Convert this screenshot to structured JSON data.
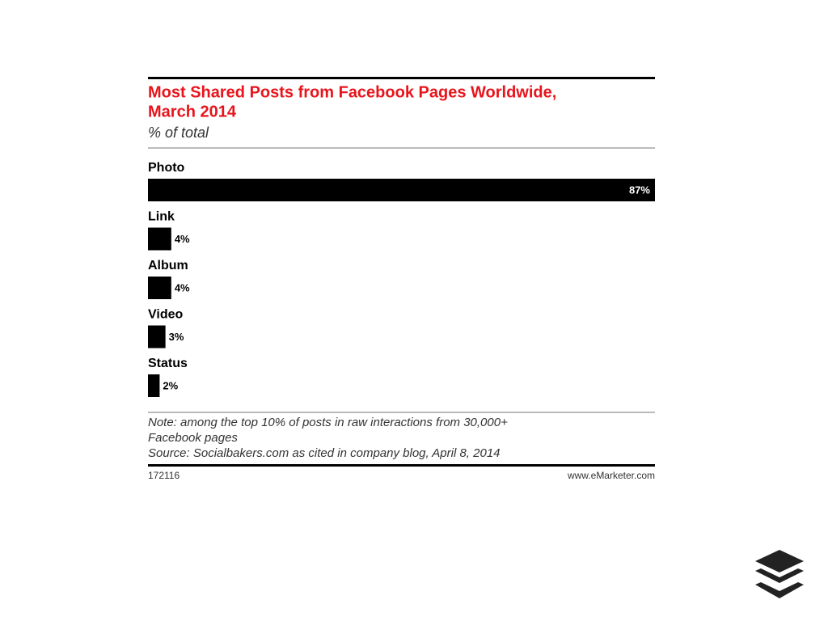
{
  "chart_data": {
    "type": "bar",
    "title": [
      "Most Shared Posts from Facebook Pages Worldwide,",
      "March 2014"
    ],
    "subtitle": "% of total",
    "categories": [
      "Photo",
      "Link",
      "Album",
      "Video",
      "Status"
    ],
    "values": [
      87,
      4,
      4,
      3,
      2
    ],
    "value_labels": [
      "87%",
      "4%",
      "4%",
      "3%",
      "2%"
    ],
    "color": "#000000",
    "note": [
      "Note: among the top 10% of posts in raw interactions from 30,000+",
      "Facebook pages"
    ],
    "source": "Source: Socialbakers.com as cited in company blog, April 8, 2014",
    "chart_id": "172116",
    "credit": "www.eMarketer.com"
  }
}
